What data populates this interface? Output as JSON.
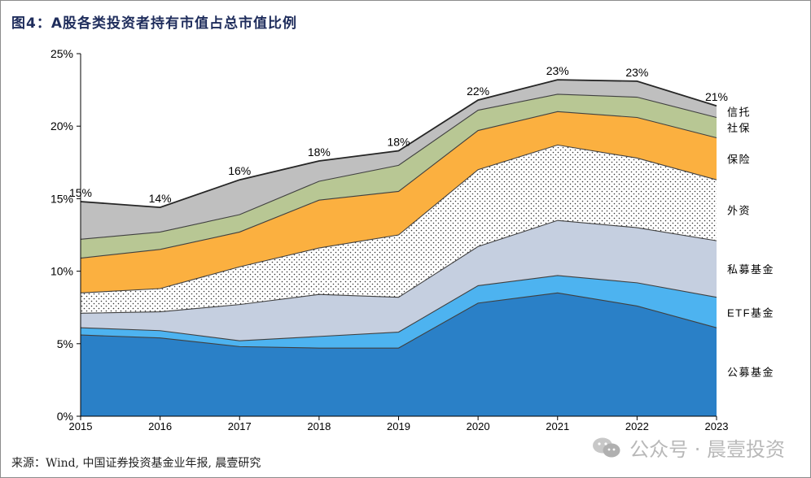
{
  "header": {
    "title": "图4：A股各类投资者持有市值占总市值比例"
  },
  "footer": {
    "source": "来源：Wind, 中国证券投资基金业年报, 晨壹研究"
  },
  "watermark": {
    "text": "公众号 · 晨壹投资",
    "icon": "wechat-icon"
  },
  "chart_data": {
    "type": "area",
    "stacked": true,
    "title": "",
    "xlabel": "",
    "ylabel": "",
    "x": [
      "2015",
      "2016",
      "2017",
      "2018",
      "2019",
      "2020",
      "2021",
      "2022",
      "2023"
    ],
    "ylim": [
      0,
      25
    ],
    "yticks": [
      0,
      5,
      10,
      15,
      20,
      25
    ],
    "ytick_labels": [
      "0%",
      "5%",
      "10%",
      "15%",
      "20%",
      "25%"
    ],
    "grid": false,
    "legend": "inline-right",
    "series": [
      {
        "name": "公募基金",
        "values": [
          5.6,
          5.4,
          4.8,
          4.7,
          4.7,
          7.8,
          8.5,
          7.6,
          6.1
        ],
        "color": "#2a80c7",
        "pattern": "solid"
      },
      {
        "name": "ETF基金",
        "values": [
          0.5,
          0.5,
          0.4,
          0.8,
          1.1,
          1.2,
          1.2,
          1.6,
          2.1
        ],
        "color": "#4db3f0",
        "pattern": "solid"
      },
      {
        "name": "私募基金",
        "values": [
          1.0,
          1.3,
          2.5,
          2.9,
          2.4,
          2.7,
          3.8,
          3.8,
          3.9
        ],
        "color": "#c5cfe0",
        "pattern": "solid"
      },
      {
        "name": "外资",
        "values": [
          1.4,
          1.6,
          2.6,
          3.2,
          4.3,
          5.3,
          5.2,
          4.8,
          4.2
        ],
        "color": "#ffffff",
        "pattern": "dots"
      },
      {
        "name": "保险",
        "values": [
          2.4,
          2.7,
          2.4,
          3.3,
          3.0,
          2.7,
          2.3,
          2.8,
          2.9
        ],
        "color": "#fbb040",
        "pattern": "solid"
      },
      {
        "name": "社保",
        "values": [
          1.3,
          1.2,
          1.2,
          1.3,
          1.8,
          1.4,
          1.2,
          1.4,
          1.4
        ],
        "color": "#b8c794",
        "pattern": "solid"
      },
      {
        "name": "信托",
        "values": [
          2.6,
          1.7,
          2.4,
          1.4,
          1.0,
          0.7,
          1.0,
          1.1,
          0.8
        ],
        "color": "#bfbfbf",
        "pattern": "solid"
      }
    ],
    "totals_labels": [
      "15%",
      "14%",
      "16%",
      "18%",
      "18%",
      "22%",
      "23%",
      "23%",
      "21%"
    ]
  }
}
